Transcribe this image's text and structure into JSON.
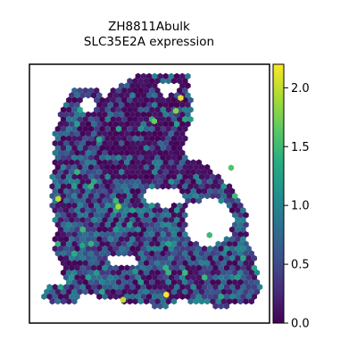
{
  "chart_data": {
    "type": "scatter",
    "title": "ZH8811Abulk",
    "subtitle": "SLC35E2A expression",
    "xlabel": "",
    "ylabel": "",
    "colorbar": {
      "label": "",
      "range": [
        0.0,
        2.2
      ],
      "ticks": [
        "0.0",
        "0.5",
        "1.0",
        "1.5",
        "2.0"
      ],
      "tick_values": [
        0.0,
        0.5,
        1.0,
        1.5,
        2.0
      ],
      "colormap": "viridis"
    },
    "axes_ticks": false,
    "grid": false,
    "marker": "hexagon",
    "expression_summary": {
      "typical_range": [
        0.0,
        1.0
      ],
      "max_observed": 2.2
    },
    "highlighted_spots": [
      {
        "x": 0.57,
        "y": 0.89,
        "value": 2.2
      },
      {
        "x": 0.39,
        "y": 0.91,
        "value": 2.0
      },
      {
        "x": 0.37,
        "y": 0.55,
        "value": 1.9
      },
      {
        "x": 0.75,
        "y": 0.66,
        "value": 1.5
      },
      {
        "x": 0.84,
        "y": 0.4,
        "value": 1.6
      },
      {
        "x": 0.63,
        "y": 0.13,
        "value": 2.1
      },
      {
        "x": 0.61,
        "y": 0.18,
        "value": 1.8
      },
      {
        "x": 0.29,
        "y": 0.29,
        "value": 1.4
      },
      {
        "x": 0.12,
        "y": 0.52,
        "value": 2.0
      },
      {
        "x": 0.22,
        "y": 0.7,
        "value": 1.3
      },
      {
        "x": 0.44,
        "y": 0.8,
        "value": 1.2
      },
      {
        "x": 0.52,
        "y": 0.22,
        "value": 1.7
      }
    ]
  }
}
